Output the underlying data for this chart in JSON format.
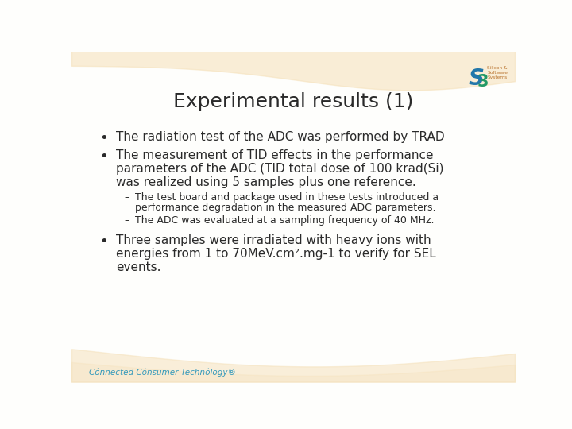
{
  "title": "Experimental results (1)",
  "title_fontsize": 18,
  "title_color": "#2a2a2a",
  "bg_color": "#FEFEFC",
  "bullet1": "The radiation test of the ADC was performed by TRAD",
  "bullet2_line1": "The measurement of TID effects in the performance",
  "bullet2_line2": "parameters of the ADC (TID total dose of 100 krad(Si)",
  "bullet2_line3": "was realized using 5 samples plus one reference.",
  "sub1_line1": "The test board and package used in these tests introduced a",
  "sub1_line2": "performance degradation in the measured ADC parameters.",
  "sub2": "The ADC was evaluated at a sampling frequency of 40 MHz.",
  "bullet3_line1": "Three samples were irradiated with heavy ions with",
  "bullet3_line2": "energies from 1 to 70MeV.cm².mg-1 to verify for SEL",
  "bullet3_line3": "events.",
  "footer_color": "#3399BB",
  "main_font_size": 11.0,
  "sub_font_size": 9.0,
  "text_color": "#2a2a2a",
  "wave_color": "#F5E0B8",
  "logo_blue": "#2277AA",
  "logo_green": "#229966",
  "logo_text_color": "#BB7733"
}
